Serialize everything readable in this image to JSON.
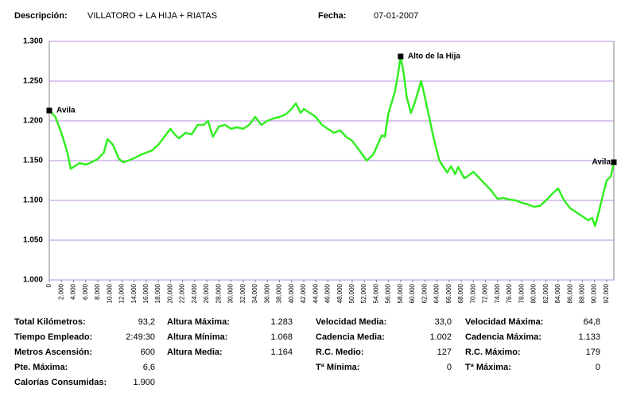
{
  "header": {
    "desc_label": "Descripción:",
    "description": "VILLATORO + LA HIJA + RIATAS",
    "date_label": "Fecha:",
    "date": "07-01-2007"
  },
  "chart_data": {
    "type": "line",
    "color": "#33ee22",
    "grid": true,
    "x": [
      0,
      1000,
      2000,
      3000,
      3500,
      4000,
      5000,
      6000,
      7000,
      8000,
      9000,
      9600,
      10500,
      11500,
      12200,
      13000,
      14000,
      15000,
      16000,
      17000,
      18000,
      19000,
      20000,
      20700,
      21400,
      22500,
      23500,
      24500,
      25500,
      26200,
      27000,
      28000,
      29000,
      30000,
      31000,
      32000,
      33000,
      34000,
      35000,
      36000,
      37000,
      38000,
      39000,
      40000,
      40700,
      41500,
      42000,
      43000,
      44000,
      45000,
      46000,
      47000,
      48000,
      49000,
      50000,
      51000,
      52400,
      53500,
      54200,
      54900,
      55400,
      56000,
      57000,
      57500,
      58000,
      58500,
      59000,
      59700,
      60300,
      61000,
      61400,
      62000,
      62700,
      63400,
      64400,
      65700,
      66300,
      67000,
      67500,
      68500,
      69000,
      70000,
      71000,
      72000,
      73000,
      74000,
      75000,
      76000,
      77000,
      78000,
      79000,
      80000,
      81000,
      82000,
      83000,
      84000,
      85000,
      86000,
      87000,
      88000,
      89000,
      89600,
      90100,
      90700,
      91500,
      92000,
      92700,
      93200
    ],
    "values": [
      1213,
      1205,
      1185,
      1160,
      1140,
      1142,
      1147,
      1145,
      1148,
      1152,
      1160,
      1177,
      1170,
      1152,
      1148,
      1150,
      1153,
      1157,
      1160,
      1163,
      1170,
      1180,
      1190,
      1183,
      1178,
      1185,
      1183,
      1195,
      1195,
      1200,
      1180,
      1193,
      1195,
      1190,
      1192,
      1190,
      1195,
      1205,
      1195,
      1200,
      1203,
      1205,
      1208,
      1215,
      1222,
      1210,
      1215,
      1210,
      1205,
      1195,
      1190,
      1185,
      1188,
      1180,
      1175,
      1165,
      1150,
      1158,
      1170,
      1182,
      1180,
      1210,
      1235,
      1255,
      1281,
      1260,
      1230,
      1210,
      1222,
      1240,
      1250,
      1230,
      1205,
      1180,
      1150,
      1135,
      1143,
      1133,
      1142,
      1128,
      1130,
      1136,
      1128,
      1120,
      1112,
      1102,
      1103,
      1101,
      1100,
      1097,
      1095,
      1092,
      1093,
      1100,
      1108,
      1115,
      1100,
      1090,
      1085,
      1080,
      1075,
      1078,
      1068,
      1085,
      1110,
      1125,
      1130,
      1148
    ],
    "xlim": [
      0,
      93200
    ],
    "ylim": [
      1000,
      1300
    ],
    "yticks": [
      {
        "value": 1000,
        "label": "1.000"
      },
      {
        "value": 1050,
        "label": "1.050"
      },
      {
        "value": 1100,
        "label": "1.100"
      },
      {
        "value": 1150,
        "label": "1.150"
      },
      {
        "value": 1200,
        "label": "1.200"
      },
      {
        "value": 1250,
        "label": "1.250"
      },
      {
        "value": 1300,
        "label": "1.300"
      }
    ],
    "xticks": [
      0,
      {
        "value": 2000,
        "label": "2.000"
      },
      {
        "value": 4000,
        "label": "4.000"
      },
      {
        "value": 6000,
        "label": "6.000"
      },
      {
        "value": 8000,
        "label": "8.000"
      },
      {
        "value": 10000,
        "label": "10.000"
      },
      {
        "value": 12000,
        "label": "12.000"
      },
      {
        "value": 14000,
        "label": "14.000"
      },
      {
        "value": 16000,
        "label": "16.000"
      },
      {
        "value": 18000,
        "label": "18.000"
      },
      {
        "value": 20000,
        "label": "20.000"
      },
      {
        "value": 22000,
        "label": "22.000"
      },
      {
        "value": 24000,
        "label": "24.000"
      },
      {
        "value": 26000,
        "label": "26.000"
      },
      {
        "value": 28000,
        "label": "28.000"
      },
      {
        "value": 30000,
        "label": "30.000"
      },
      {
        "value": 32000,
        "label": "32.000"
      },
      {
        "value": 34000,
        "label": "34.000"
      },
      {
        "value": 36000,
        "label": "36.000"
      },
      {
        "value": 38000,
        "label": "38.000"
      },
      {
        "value": 40000,
        "label": "40.000"
      },
      {
        "value": 42000,
        "label": "42.000"
      },
      {
        "value": 44000,
        "label": "44.000"
      },
      {
        "value": 46000,
        "label": "46.000"
      },
      {
        "value": 48000,
        "label": "48.000"
      },
      {
        "value": 50000,
        "label": "50.000"
      },
      {
        "value": 52000,
        "label": "52.000"
      },
      {
        "value": 54000,
        "label": "54.000"
      },
      {
        "value": 56000,
        "label": "56.000"
      },
      {
        "value": 58000,
        "label": "58.000"
      },
      {
        "value": 60000,
        "label": "60.000"
      },
      {
        "value": 62000,
        "label": "62.000"
      },
      {
        "value": 64000,
        "label": "64.000"
      },
      {
        "value": 66000,
        "label": "66.000"
      },
      {
        "value": 68000,
        "label": "68.000"
      },
      {
        "value": 70000,
        "label": "70.000"
      },
      {
        "value": 72000,
        "label": "72.000"
      },
      {
        "value": 74000,
        "label": "74.000"
      },
      {
        "value": 76000,
        "label": "76.000"
      },
      {
        "value": 78000,
        "label": "78.000"
      },
      {
        "value": 80000,
        "label": "80.000"
      },
      {
        "value": 82000,
        "label": "82.000"
      },
      {
        "value": 84000,
        "label": "84.000"
      },
      {
        "value": 86000,
        "label": "86.000"
      },
      {
        "value": 88000,
        "label": "88.000"
      },
      {
        "value": 90000,
        "label": "90.000"
      },
      {
        "value": 92000,
        "label": "92.000"
      }
    ],
    "annotations": [
      {
        "text": "Avila",
        "x": 0,
        "y": 1213
      },
      {
        "text": "Alto de la Hija",
        "x": 58000,
        "y": 1281
      },
      {
        "text": "Avila",
        "x": 93200,
        "y": 1148
      }
    ]
  },
  "stats": [
    [
      {
        "label": "Total Kilómetros:",
        "value": "93,2"
      },
      {
        "label": "Tiempo Empleado:",
        "value": "2:49:30"
      },
      {
        "label": "Metros Ascensión:",
        "value": "600"
      },
      {
        "label": "Pte. Máxima:",
        "value": "6,6"
      },
      {
        "label": "Calorías Consumidas:",
        "value": "1.900"
      }
    ],
    [
      {
        "label": "Altura Máxima:",
        "value": "1.283"
      },
      {
        "label": "Altura Mínima:",
        "value": "1.068"
      },
      {
        "label": "Altura Media:",
        "value": "1.164"
      }
    ],
    [
      {
        "label": "Velocidad Media:",
        "value": "33,0"
      },
      {
        "label": "Cadencia Media:",
        "value": "1.002"
      },
      {
        "label": "R.C. Medio:",
        "value": "127"
      },
      {
        "label": "Tª Mínima:",
        "value": "0"
      }
    ],
    [
      {
        "label": "Velocidad Máxima:",
        "value": "64,8"
      },
      {
        "label": "Cadencia Máxima:",
        "value": "1.133"
      },
      {
        "label": "R.C.  Máximo:",
        "value": "179"
      },
      {
        "label": "Tª Máxima:",
        "value": "0"
      }
    ]
  ]
}
